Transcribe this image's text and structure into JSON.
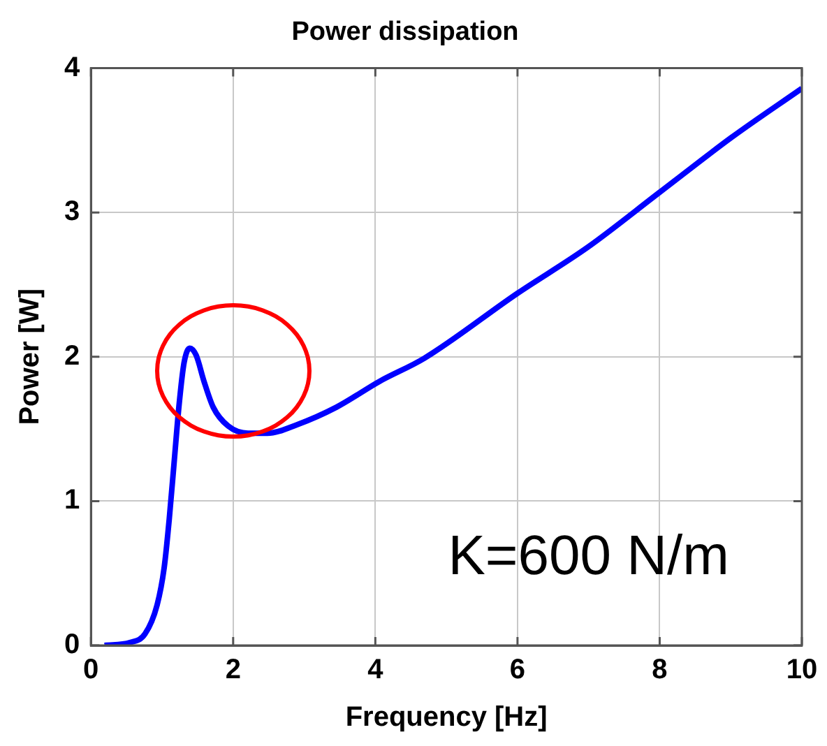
{
  "chart_data": {
    "type": "line",
    "title": "Power dissipation",
    "xlabel": "Frequency [Hz]",
    "ylabel": "Power [W]",
    "annotations": [
      "K=600 N/m"
    ],
    "xlim": [
      0,
      10
    ],
    "ylim": [
      0,
      4
    ],
    "xticks": [
      0,
      2,
      4,
      6,
      8,
      10
    ],
    "yticks": [
      0,
      1,
      2,
      3,
      4
    ],
    "grid": true,
    "legend": false,
    "marker": "none",
    "line_style": "solid",
    "series": [
      {
        "color": "#0000ff",
        "x": [
          0.19,
          0.55,
          0.76,
          0.93,
          1.03,
          1.1,
          1.17,
          1.24,
          1.31,
          1.39,
          1.48,
          1.59,
          1.72,
          1.93,
          2.21,
          2.48,
          2.9,
          3.45,
          4.06,
          4.69,
          6.0,
          6.99,
          8.0,
          9.01,
          10.0
        ],
        "values": [
          0,
          0.02,
          0.08,
          0.28,
          0.54,
          0.87,
          1.27,
          1.67,
          1.96,
          2.06,
          2.01,
          1.83,
          1.65,
          1.52,
          1.47,
          1.47,
          1.53,
          1.65,
          1.83,
          1.99,
          2.44,
          2.76,
          3.14,
          3.52,
          3.86
        ]
      }
    ]
  }
}
